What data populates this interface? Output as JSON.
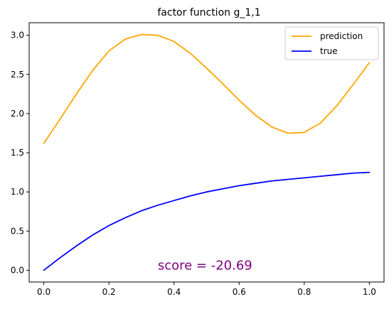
{
  "chart_data": {
    "type": "line",
    "title": "factor function g_1,1",
    "xlabel": "",
    "ylabel": "",
    "xlim": [
      -0.045,
      1.045
    ],
    "ylim": [
      -0.15,
      3.16
    ],
    "x_ticks": [
      0.0,
      0.2,
      0.4,
      0.6,
      0.8,
      1.0
    ],
    "x_tick_labels": [
      "0.0",
      "0.2",
      "0.4",
      "0.6",
      "0.8",
      "1.0"
    ],
    "y_ticks": [
      0.0,
      0.5,
      1.0,
      1.5,
      2.0,
      2.5,
      3.0
    ],
    "y_tick_labels": [
      "0.0",
      "0.5",
      "1.0",
      "1.5",
      "2.0",
      "2.5",
      "3.0"
    ],
    "grid": false,
    "legend_position": "top-right",
    "annotation": {
      "text": "score = -20.69",
      "x": 0.35,
      "y": 0.01,
      "color": "#800080"
    },
    "series": [
      {
        "name": "prediction",
        "color": "#ffa500",
        "x": [
          0.0,
          0.05,
          0.1,
          0.15,
          0.2,
          0.25,
          0.3,
          0.35,
          0.4,
          0.45,
          0.5,
          0.55,
          0.6,
          0.65,
          0.7,
          0.75,
          0.8,
          0.85,
          0.9,
          0.95,
          1.0
        ],
        "y": [
          1.62,
          1.93,
          2.25,
          2.55,
          2.8,
          2.95,
          3.01,
          3.0,
          2.92,
          2.77,
          2.58,
          2.38,
          2.17,
          1.98,
          1.83,
          1.75,
          1.76,
          1.88,
          2.1,
          2.37,
          2.65
        ]
      },
      {
        "name": "true",
        "color": "#0000ff",
        "x": [
          0.0,
          0.05,
          0.1,
          0.15,
          0.2,
          0.25,
          0.3,
          0.35,
          0.4,
          0.45,
          0.5,
          0.55,
          0.6,
          0.65,
          0.7,
          0.75,
          0.8,
          0.85,
          0.9,
          0.95,
          1.0
        ],
        "y": [
          0.0,
          0.16,
          0.31,
          0.45,
          0.57,
          0.67,
          0.76,
          0.83,
          0.89,
          0.95,
          1.0,
          1.04,
          1.08,
          1.11,
          1.14,
          1.16,
          1.18,
          1.2,
          1.22,
          1.24,
          1.25
        ]
      }
    ]
  }
}
